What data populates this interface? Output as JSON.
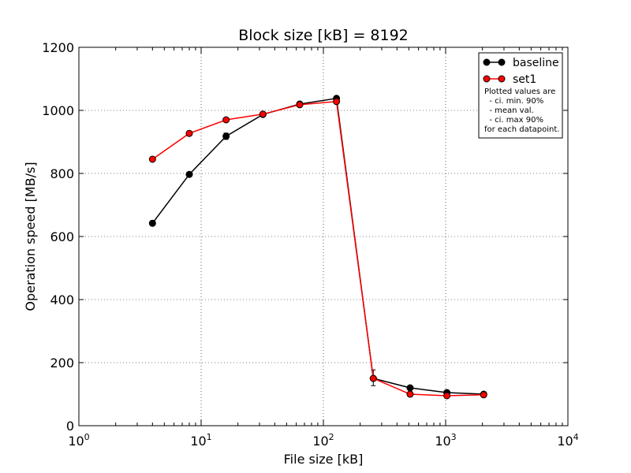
{
  "chart_data": {
    "type": "line",
    "title": "Block size [kB] = 8192",
    "xlabel": "File size [kB]",
    "ylabel": "Operation speed [MB/s]",
    "xscale": "log",
    "xlim": [
      1,
      10000
    ],
    "ylim": [
      0,
      1200
    ],
    "grid": true,
    "legend_position": "top-right",
    "x_ticks": [
      {
        "value": 1,
        "base": "10",
        "exp": "0"
      },
      {
        "value": 10,
        "base": "10",
        "exp": "1"
      },
      {
        "value": 100,
        "base": "10",
        "exp": "2"
      },
      {
        "value": 1000,
        "base": "10",
        "exp": "3"
      },
      {
        "value": 10000,
        "base": "10",
        "exp": "4"
      }
    ],
    "y_ticks": [
      0,
      200,
      400,
      600,
      800,
      1000,
      1200
    ],
    "x": [
      4,
      8,
      16,
      32,
      64,
      128,
      256,
      512,
      1024,
      2048
    ],
    "series": [
      {
        "name": "baseline",
        "color": "#000000",
        "marker_color": "#000000",
        "values": [
          642,
          797,
          918,
          987,
          1020,
          1038,
          150,
          120,
          105,
          100
        ],
        "ci_low": [
          634,
          793,
          908,
          982,
          1014,
          1034,
          127,
          114,
          101,
          95
        ],
        "ci_high": [
          650,
          801,
          928,
          992,
          1026,
          1042,
          177,
          126,
          109,
          105
        ]
      },
      {
        "name": "set1",
        "color": "#ff0000",
        "marker_color": "#ff0000",
        "values": [
          845,
          927,
          970,
          988,
          1018,
          1028,
          150,
          100,
          95,
          98
        ],
        "ci_low": [
          842,
          924,
          966,
          985,
          1013,
          1025,
          145,
          92,
          91,
          94
        ],
        "ci_high": [
          848,
          930,
          974,
          991,
          1023,
          1031,
          155,
          108,
          99,
          102
        ]
      }
    ],
    "legend_note": [
      "Plotted values are",
      "  - ci. min. 90%",
      "  - mean val.",
      "  - ci. max 90%",
      "for each datapoint."
    ]
  }
}
